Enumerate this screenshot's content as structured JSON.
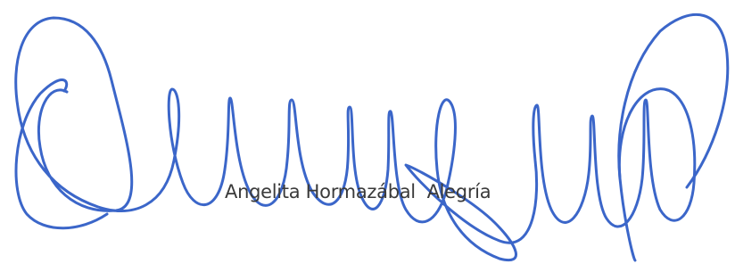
{
  "signature": {
    "printed_name": "Angelita Hormazábal  Alegría"
  }
}
